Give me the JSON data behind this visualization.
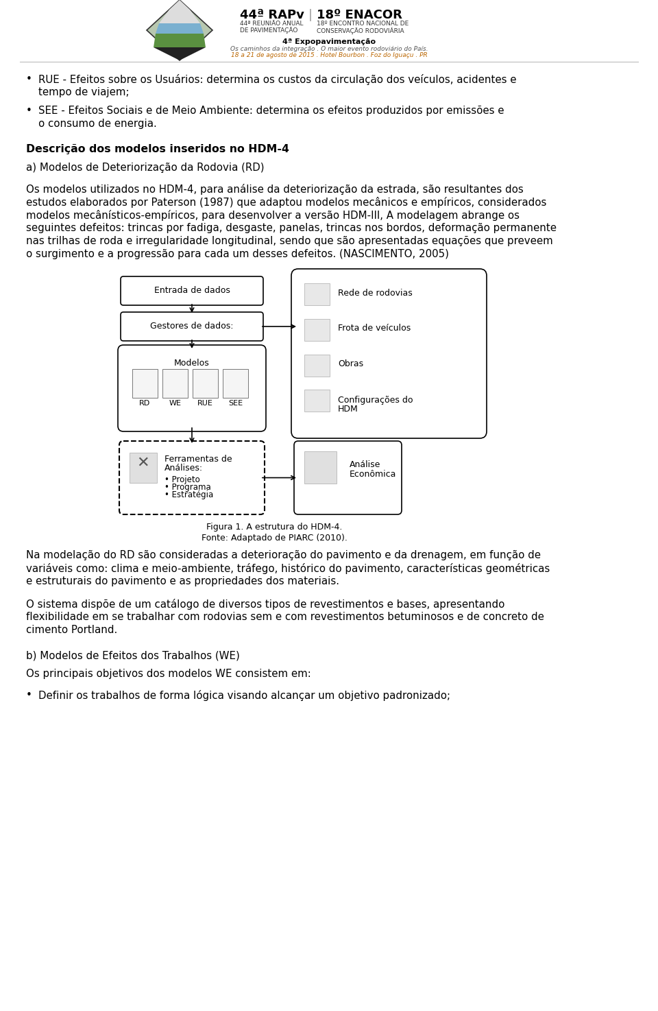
{
  "bg_color": "#ffffff",
  "bullet1_line1": "RUE - Efeitos sobre os Usuários: determina os custos da circulação dos veículos, acidentes e",
  "bullet1_line2": "tempo de viajem;",
  "bullet2_line1": "SEE - Efeitos Sociais e de Meio Ambiente: determina os efeitos produzidos por emissões e",
  "bullet2_line2": "o consumo de energia.",
  "section_title": "Descrição dos modelos inseridos no HDM-4",
  "subsection_a": "a) Modelos de Deteriorização da Rodovia (RD)",
  "para1_line1": "Os modelos utilizados no HDM-4, para análise da deteriorização da estrada, são resultantes dos",
  "para1_line2": "estudos elaborados por Paterson (1987) que adaptou modelos mecânicos e empíricos, considerados",
  "para1_line3": "modelos mecânísticos-empíricos, para desenvolver a versão HDM-III, A modelagem abrange os",
  "para1_line4": "seguintes defeitos: trincas por fadiga, desgaste, panelas, trincas nos bordos, deformação permanente",
  "para1_line5": "nas trilhas de roda e irregularidade longitudinal, sendo que são apresentadas equações que preveem",
  "para1_line6": "o surgimento e a progressão para cada um desses defeitos. (NASCIMENTO, 2005)",
  "diag_box1": "Entrada de dados",
  "diag_box2": "Gestores de dados:",
  "diag_box3": "Modelos",
  "diag_right_title1": "Rede de rodovias",
  "diag_right_title2": "Frota de veículos",
  "diag_right_title3": "Obras",
  "diag_right_title4_1": "Configurações do",
  "diag_right_title4_2": "HDM",
  "diag_box4_title": "Ferramentas de",
  "diag_box4_title2": "Análises:",
  "diag_box4_bullets": "• Projeto\n• Programa\n• Estratégia",
  "diag_box5_1": "Análise",
  "diag_box5_2": "Econômica",
  "fig_caption1": "Figura 1. A estrutura do HDM-4.",
  "fig_caption2": "Fonte: Adaptado de PIARC (2010).",
  "para2_line1": "Na modelação do RD são consideradas a deterioração do pavimento e da drenagem, em função de",
  "para2_line2": "variáveis como: clima e meio-ambiente, tráfego, histórico do pavimento, características geométricas",
  "para2_line3": "e estruturais do pavimento e as propriedades dos materiais.",
  "para3_line1": "O sistema dispõe de um catálogo de diversos tipos de revestimentos e bases, apresentando",
  "para3_line2": "flexibilidade em se trabalhar com rodovias sem e com revestimentos betuminosos e de concreto de",
  "para3_line3": "cimento Portland.",
  "subsection_b": "b) Modelos de Efeitos dos Trabalhos (WE)",
  "para4_line1": "Os principais objetivos dos modelos WE consistem em:",
  "bullet3_line1": "Definir os trabalhos de forma lógica visando alcançar um objetivo padronizado;"
}
